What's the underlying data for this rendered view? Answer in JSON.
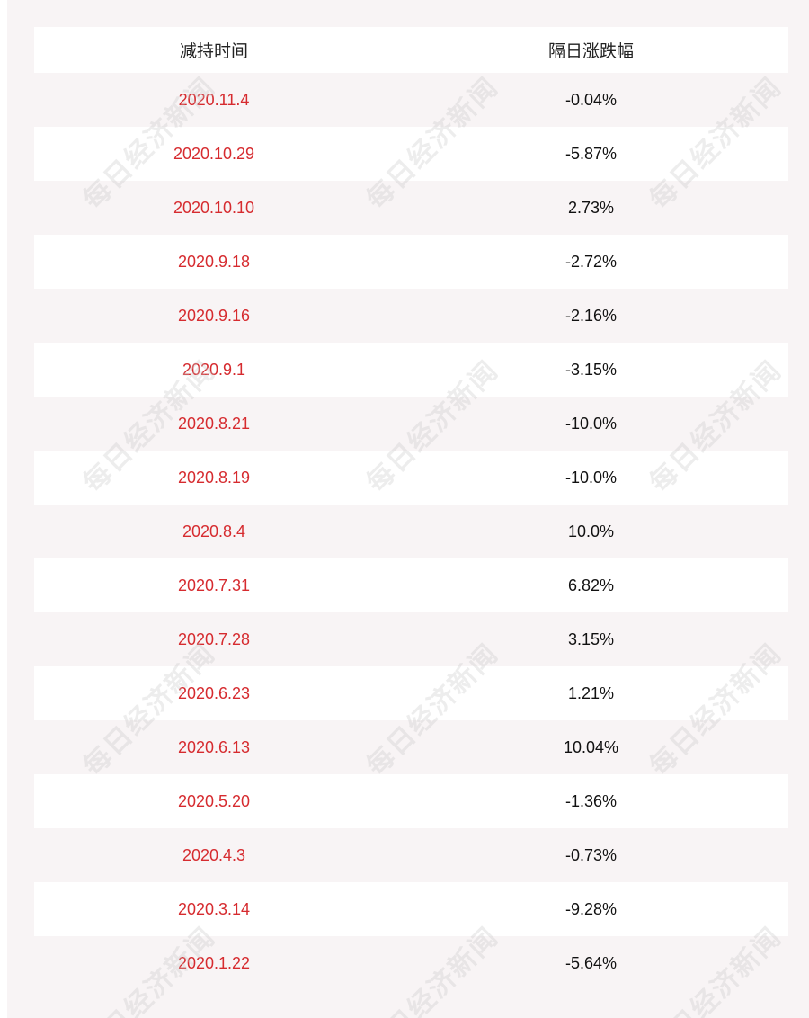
{
  "table": {
    "headers": {
      "date": "减持时间",
      "change": "隔日涨跌幅"
    },
    "rows": [
      {
        "date": "2020.11.4",
        "change": "-0.04%"
      },
      {
        "date": "2020.10.29",
        "change": "-5.87%"
      },
      {
        "date": "2020.10.10",
        "change": "2.73%"
      },
      {
        "date": "2020.9.18",
        "change": "-2.72%"
      },
      {
        "date": "2020.9.16",
        "change": "-2.16%"
      },
      {
        "date": "2020.9.1",
        "change": "-3.15%"
      },
      {
        "date": "2020.8.21",
        "change": "-10.0%"
      },
      {
        "date": "2020.8.19",
        "change": "-10.0%"
      },
      {
        "date": "2020.8.4",
        "change": "10.0%"
      },
      {
        "date": "2020.7.31",
        "change": "6.82%"
      },
      {
        "date": "2020.7.28",
        "change": "3.15%"
      },
      {
        "date": "2020.6.23",
        "change": "1.21%"
      },
      {
        "date": "2020.6.13",
        "change": "10.04%"
      },
      {
        "date": "2020.5.20",
        "change": "-1.36%"
      },
      {
        "date": "2020.4.3",
        "change": "-0.73%"
      },
      {
        "date": "2020.3.14",
        "change": "-9.28%"
      },
      {
        "date": "2020.1.22",
        "change": "-5.64%"
      }
    ]
  },
  "watermark": {
    "text": "每日经济新闻"
  },
  "colors": {
    "date_text": "#d62b2f",
    "value_text": "#111111",
    "panel_bg": "#f8f4f5",
    "row_bg": "#ffffff"
  }
}
